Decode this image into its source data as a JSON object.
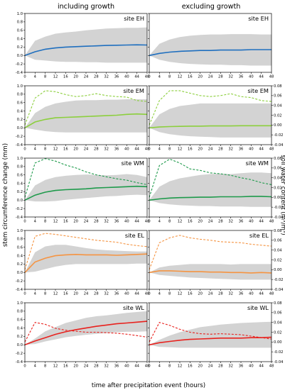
{
  "figure": {
    "col_titles": [
      "including growth",
      "excluding growth"
    ],
    "left_ylabel": "stem circumference change (mm)",
    "right_ylabel": "soil water content (m³/m³)",
    "xlabel": "time after precipitation event (hours)"
  },
  "chart_data": {
    "type": "line",
    "x_ticks": [
      0,
      4,
      8,
      12,
      16,
      20,
      24,
      28,
      32,
      36,
      40,
      44,
      48
    ],
    "xlim": [
      0,
      48
    ],
    "ylim_left": [
      -0.4,
      1.0
    ],
    "yticks_left": [
      "1.0",
      "0.8",
      "0.6",
      "0.4",
      "0.2",
      "0.0",
      "-0.2",
      "-0.4"
    ],
    "ylim_right": [
      -0.04,
      0.08
    ],
    "yticks_right": [
      "0.08",
      "0.06",
      "0.04",
      "0.02",
      "0.00",
      "-0.02",
      "-0.04"
    ],
    "band_color": "#d3d3d3",
    "x": [
      0,
      4,
      8,
      12,
      16,
      20,
      24,
      28,
      32,
      36,
      40,
      44,
      48
    ],
    "panels": [
      {
        "site": "site EH",
        "color": "#1f6fbf",
        "column": "including growth",
        "right_axis": false,
        "circumference": [
          0,
          0.09,
          0.15,
          0.18,
          0.2,
          0.21,
          0.22,
          0.23,
          0.24,
          0.245,
          0.25,
          0.255,
          0.25
        ],
        "band_upper": [
          0,
          0.35,
          0.45,
          0.52,
          0.55,
          0.57,
          0.6,
          0.62,
          0.64,
          0.65,
          0.66,
          0.66,
          0.67
        ],
        "band_lower": [
          0,
          -0.1,
          -0.12,
          -0.14,
          -0.15,
          -0.15,
          -0.16,
          -0.16,
          -0.17,
          -0.17,
          -0.17,
          -0.17,
          -0.17
        ],
        "soil_water": []
      },
      {
        "site": "site EH",
        "color": "#1f6fbf",
        "column": "excluding growth",
        "right_axis": false,
        "circumference": [
          0,
          0.05,
          0.08,
          0.1,
          0.11,
          0.12,
          0.12,
          0.13,
          0.13,
          0.13,
          0.14,
          0.14,
          0.14
        ],
        "band_upper": [
          0,
          0.28,
          0.38,
          0.44,
          0.47,
          0.49,
          0.5,
          0.5,
          0.51,
          0.51,
          0.51,
          0.5,
          0.5
        ],
        "band_lower": [
          0,
          -0.1,
          -0.15,
          -0.18,
          -0.2,
          -0.21,
          -0.22,
          -0.22,
          -0.23,
          -0.23,
          -0.24,
          -0.24,
          -0.24
        ],
        "soil_water": []
      },
      {
        "site": "site EM",
        "color": "#8ccf3d",
        "column": "including growth",
        "right_axis": false,
        "circumference": [
          0,
          0.14,
          0.2,
          0.24,
          0.25,
          0.26,
          0.27,
          0.28,
          0.29,
          0.3,
          0.32,
          0.33,
          0.32
        ],
        "band_upper": [
          0,
          0.35,
          0.5,
          0.58,
          0.62,
          0.65,
          0.66,
          0.66,
          0.67,
          0.67,
          0.68,
          0.68,
          0.68
        ],
        "band_lower": [
          0,
          -0.04,
          -0.08,
          -0.1,
          -0.11,
          -0.11,
          -0.11,
          -0.11,
          -0.11,
          -0.11,
          -0.11,
          -0.11,
          -0.11
        ],
        "soil_water": [
          0.0,
          0.055,
          0.07,
          0.068,
          0.062,
          0.058,
          0.06,
          0.064,
          0.06,
          0.058,
          0.057,
          0.05,
          0.048
        ]
      },
      {
        "site": "site EM",
        "color": "#8ccf3d",
        "column": "excluding growth",
        "right_axis": true,
        "circumference": [
          0,
          0.02,
          0.03,
          0.035,
          0.04,
          0.04,
          0.045,
          0.045,
          0.045,
          0.05,
          0.05,
          0.05,
          0.05
        ],
        "band_upper": [
          0,
          0.32,
          0.45,
          0.52,
          0.55,
          0.58,
          0.58,
          0.58,
          0.58,
          0.58,
          0.58,
          0.58,
          0.58
        ],
        "band_lower": [
          0,
          -0.1,
          -0.15,
          -0.18,
          -0.2,
          -0.21,
          -0.22,
          -0.23,
          -0.23,
          -0.23,
          -0.23,
          -0.23,
          -0.23
        ],
        "soil_water": [
          0.0,
          0.05,
          0.07,
          0.07,
          0.065,
          0.06,
          0.058,
          0.06,
          0.064,
          0.058,
          0.056,
          0.05,
          0.048
        ]
      },
      {
        "site": "site WM",
        "color": "#1e9a4b",
        "column": "including growth",
        "right_axis": false,
        "circumference": [
          0,
          0.12,
          0.19,
          0.23,
          0.25,
          0.26,
          0.27,
          0.29,
          0.3,
          0.31,
          0.32,
          0.33,
          0.32
        ],
        "band_upper": [
          0,
          0.35,
          0.48,
          0.55,
          0.58,
          0.6,
          0.61,
          0.6,
          0.59,
          0.6,
          0.62,
          0.6,
          0.55
        ],
        "band_lower": [
          0,
          -0.03,
          -0.03,
          -0.02,
          0.01,
          0.03,
          0.05,
          0.07,
          0.09,
          0.1,
          0.12,
          0.13,
          0.12
        ],
        "soil_water": [
          0.0,
          0.07,
          0.079,
          0.074,
          0.066,
          0.06,
          0.052,
          0.046,
          0.042,
          0.038,
          0.035,
          0.03,
          0.026
        ]
      },
      {
        "site": "site WM",
        "color": "#1e9a4b",
        "column": "excluding growth",
        "right_axis": true,
        "circumference": [
          0,
          0.03,
          0.05,
          0.06,
          0.065,
          0.07,
          0.07,
          0.08,
          0.08,
          0.08,
          0.09,
          0.09,
          0.08
        ],
        "band_upper": [
          0,
          0.32,
          0.45,
          0.52,
          0.56,
          0.6,
          0.62,
          0.63,
          0.62,
          0.64,
          0.66,
          0.66,
          0.64
        ],
        "band_lower": [
          0,
          -0.07,
          -0.1,
          -0.12,
          -0.13,
          -0.14,
          -0.14,
          -0.15,
          -0.15,
          -0.15,
          -0.16,
          -0.16,
          -0.16
        ],
        "soil_water": [
          0.0,
          0.065,
          0.078,
          0.07,
          0.058,
          0.055,
          0.05,
          0.048,
          0.045,
          0.04,
          0.036,
          0.03,
          0.026
        ]
      },
      {
        "site": "site EL",
        "color": "#f59442",
        "column": "including growth",
        "right_axis": false,
        "circumference": [
          0,
          0.25,
          0.34,
          0.4,
          0.42,
          0.43,
          0.42,
          0.42,
          0.42,
          0.41,
          0.42,
          0.43,
          0.44
        ],
        "band_upper": [
          0,
          0.48,
          0.62,
          0.66,
          0.66,
          0.62,
          0.58,
          0.55,
          0.53,
          0.52,
          0.51,
          0.5,
          0.5
        ],
        "band_lower": [
          0,
          0.02,
          0.08,
          0.14,
          0.18,
          0.2,
          0.2,
          0.2,
          0.2,
          0.2,
          0.2,
          0.21,
          0.21
        ],
        "soil_water": [
          0.0,
          0.068,
          0.074,
          0.072,
          0.069,
          0.066,
          0.063,
          0.06,
          0.058,
          0.056,
          0.052,
          0.049,
          0.047
        ]
      },
      {
        "site": "site EL",
        "color": "#f59442",
        "column": "excluding growth",
        "right_axis": true,
        "circumference": [
          0,
          0.04,
          0.04,
          0.03,
          0.02,
          0.02,
          0.01,
          0.01,
          0.0,
          0.0,
          -0.01,
          0.0,
          -0.01
        ],
        "band_upper": [
          0,
          0.12,
          0.16,
          0.18,
          0.2,
          0.2,
          0.2,
          0.2,
          0.19,
          0.2,
          0.2,
          0.2,
          0.2
        ],
        "band_lower": [
          0,
          -0.06,
          -0.08,
          -0.1,
          -0.12,
          -0.13,
          -0.14,
          -0.15,
          -0.16,
          -0.17,
          -0.17,
          -0.17,
          -0.17
        ],
        "soil_water": [
          0.0,
          0.055,
          0.065,
          0.07,
          0.065,
          0.062,
          0.06,
          0.057,
          0.056,
          0.055,
          0.052,
          0.05,
          0.048
        ]
      },
      {
        "site": "site WL",
        "color": "#e8211d",
        "column": "including growth",
        "right_axis": false,
        "circumference": [
          0,
          0.09,
          0.17,
          0.25,
          0.31,
          0.36,
          0.4,
          0.44,
          0.47,
          0.5,
          0.52,
          0.54,
          0.56
        ],
        "band_upper": [
          0,
          0.15,
          0.32,
          0.42,
          0.52,
          0.58,
          0.64,
          0.68,
          0.7,
          0.73,
          0.76,
          0.78,
          0.8
        ],
        "band_lower": [
          0,
          0.02,
          0.08,
          0.13,
          0.18,
          0.21,
          0.24,
          0.26,
          0.28,
          0.3,
          0.31,
          0.31,
          0.32
        ],
        "soil_water": [
          0.0,
          0.04,
          0.036,
          0.028,
          0.024,
          0.022,
          0.02,
          0.02,
          0.019,
          0.018,
          0.016,
          0.013,
          0.01
        ]
      },
      {
        "site": "site WL",
        "color": "#e8211d",
        "column": "excluding growth",
        "right_axis": true,
        "circumference": [
          0,
          0.05,
          0.08,
          0.11,
          0.13,
          0.14,
          0.15,
          0.16,
          0.16,
          0.16,
          0.17,
          0.17,
          0.18
        ],
        "band_upper": [
          0,
          0.12,
          0.22,
          0.3,
          0.36,
          0.42,
          0.45,
          0.48,
          0.5,
          0.52,
          0.53,
          0.54,
          0.55
        ],
        "band_lower": [
          0,
          -0.05,
          -0.06,
          -0.07,
          -0.07,
          -0.07,
          -0.07,
          -0.07,
          -0.07,
          -0.07,
          -0.07,
          -0.07,
          -0.07
        ],
        "soil_water": [
          0.0,
          0.04,
          0.034,
          0.026,
          0.02,
          0.017,
          0.016,
          0.017,
          0.016,
          0.015,
          0.012,
          0.009,
          0.006
        ]
      }
    ]
  }
}
